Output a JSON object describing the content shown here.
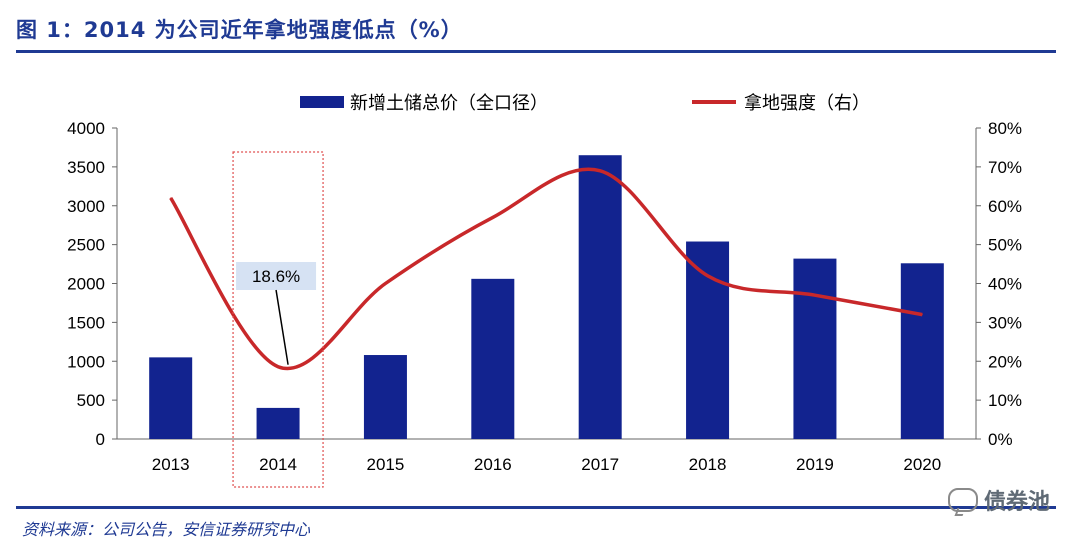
{
  "header": {
    "title": "图 1：2014 为公司近年拿地强度低点（%）"
  },
  "footer": {
    "source": "资料来源：公司公告，安信证券研究中心",
    "watermark": "债券池"
  },
  "colors": {
    "bar": "#12238f",
    "line": "#c8282a",
    "title": "#1f3a93",
    "annotation_box": "#d6e2f3",
    "highlight_box": "#e05050"
  },
  "chart_data": {
    "type": "bar",
    "categories": [
      "2013",
      "2014",
      "2015",
      "2016",
      "2017",
      "2018",
      "2019",
      "2020"
    ],
    "series": [
      {
        "name": "新增土储总价（全口径）",
        "type": "bar",
        "axis": "left",
        "values": [
          1050,
          400,
          1080,
          2060,
          3650,
          2540,
          2320,
          2260
        ]
      },
      {
        "name": "拿地强度（右）",
        "type": "line",
        "axis": "right",
        "values": [
          62,
          18.6,
          40,
          57,
          69,
          42,
          37,
          32
        ]
      }
    ],
    "y_left": {
      "min": 0,
      "max": 4000,
      "ticks": [
        "0",
        "500",
        "1000",
        "1500",
        "2000",
        "2500",
        "3000",
        "3500",
        "4000"
      ]
    },
    "y_right": {
      "min": 0,
      "max": 80,
      "ticks": [
        "0%",
        "10%",
        "20%",
        "30%",
        "40%",
        "50%",
        "60%",
        "70%",
        "80%"
      ]
    },
    "annotation": {
      "category": "2014",
      "value": 18.6,
      "text": "18.6%"
    },
    "legend_position": "top",
    "grid": false
  }
}
